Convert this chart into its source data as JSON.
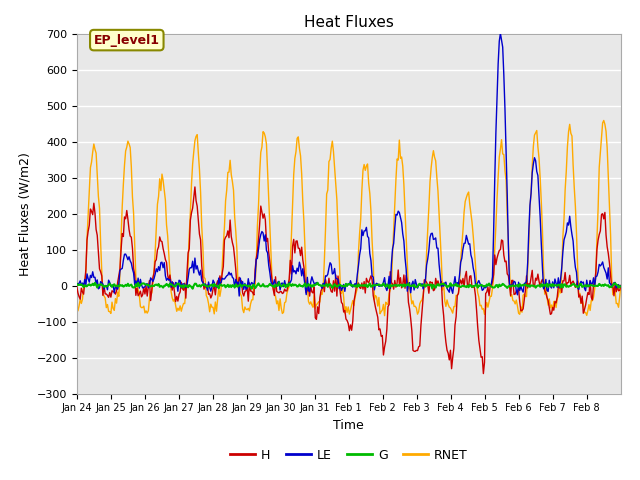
{
  "title": "Heat Fluxes",
  "xlabel": "Time",
  "ylabel": "Heat Fluxes (W/m2)",
  "ylim": [
    -300,
    700
  ],
  "yticks": [
    -300,
    -200,
    -100,
    0,
    100,
    200,
    300,
    400,
    500,
    600,
    700
  ],
  "colors": {
    "H": "#cc0000",
    "LE": "#0000cc",
    "G": "#00bb00",
    "RNET": "#ffaa00"
  },
  "annotation_text": "EP_level1",
  "annotation_facecolor": "#ffffcc",
  "annotation_edgecolor": "#888800",
  "annotation_textcolor": "#880000",
  "fig_facecolor": "#ffffff",
  "plot_facecolor": "#e8e8e8",
  "grid_color": "#ffffff",
  "x_ticklabels": [
    "Jan 24",
    "Jan 25",
    "Jan 26",
    "Jan 27",
    "Jan 28",
    "Jan 29",
    "Jan 30",
    "Jan 31",
    "Feb 1",
    "Feb 2",
    "Feb 3",
    "Feb 4",
    "Feb 5",
    "Feb 6",
    "Feb 7",
    "Feb 8"
  ],
  "n_points": 480,
  "seed": 42,
  "linewidth": 1.0
}
